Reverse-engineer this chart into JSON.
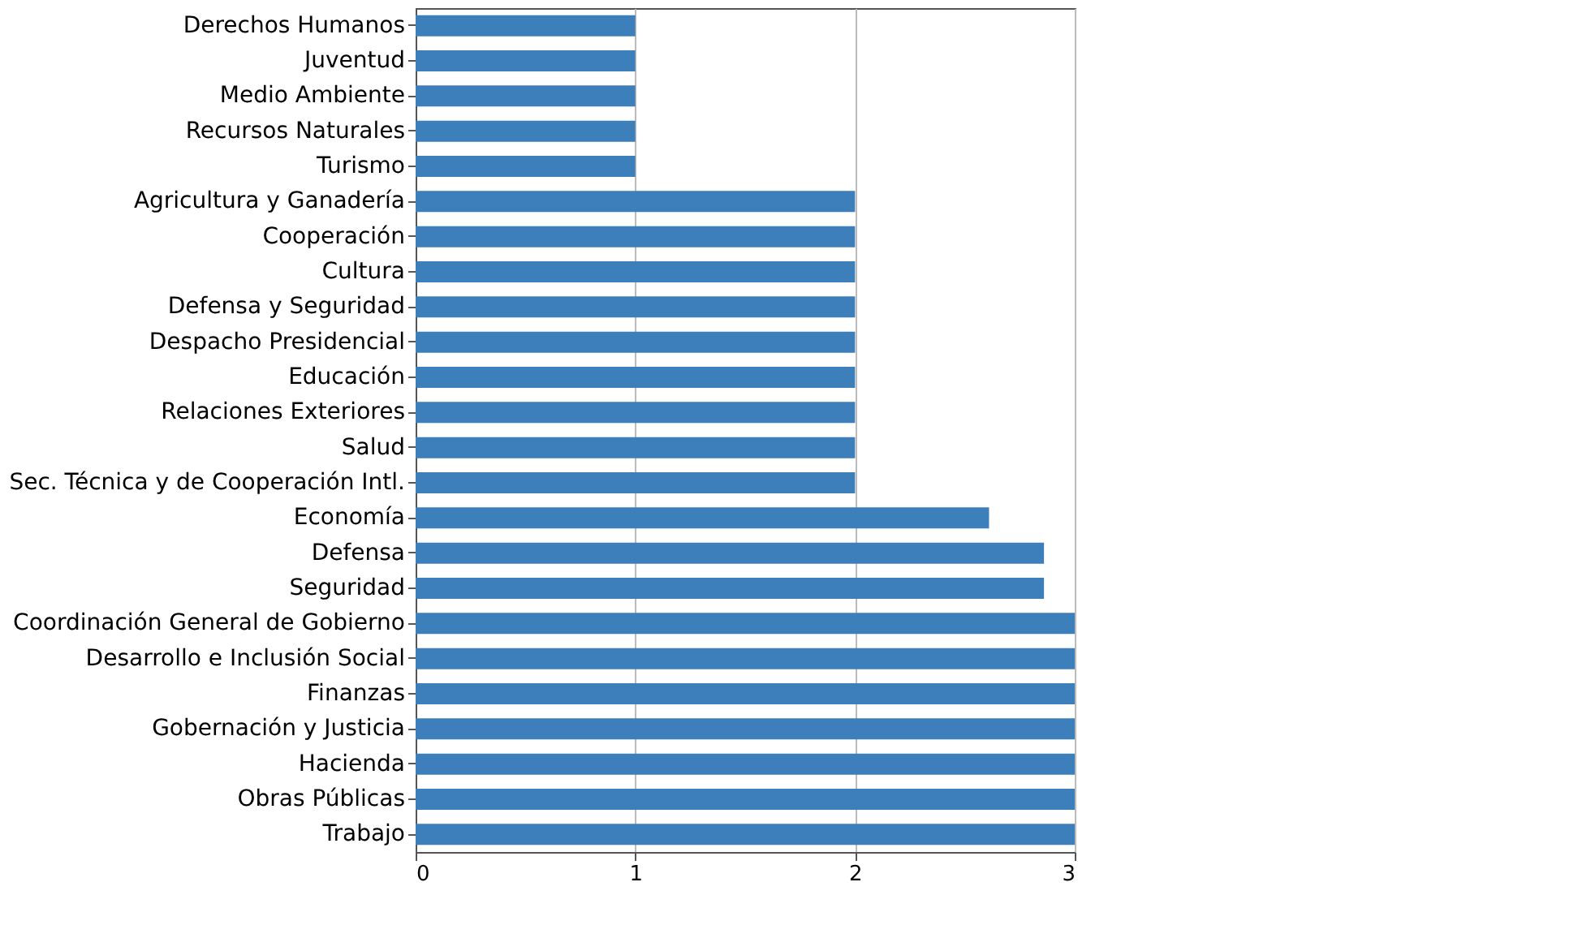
{
  "chart_data": {
    "type": "bar",
    "orientation": "horizontal",
    "categories": [
      "Derechos Humanos",
      "Juventud",
      "Medio Ambiente",
      "Recursos Naturales",
      "Turismo",
      "Agricultura y Ganadería",
      "Cooperación",
      "Cultura",
      "Defensa y Seguridad",
      "Despacho Presidencial",
      "Educación",
      "Relaciones Exteriores",
      "Salud",
      "Sec. Técnica y de Cooperación Intl.",
      "Economía",
      "Defensa",
      "Seguridad",
      "Coordinación General de Gobierno",
      "Desarrollo e Inclusión Social",
      "Finanzas",
      "Gobernación y Justicia",
      "Hacienda",
      "Obras Públicas",
      "Trabajo"
    ],
    "values": [
      1,
      1,
      1,
      1,
      1,
      2,
      2,
      2,
      2,
      2,
      2,
      2,
      2,
      2,
      2.61,
      2.86,
      2.86,
      3,
      3,
      3,
      3,
      3,
      3,
      3
    ],
    "color": "#3d7fbb",
    "xlim": [
      0,
      3
    ],
    "xticks": [
      0,
      1,
      2,
      3
    ],
    "grid": "x"
  }
}
